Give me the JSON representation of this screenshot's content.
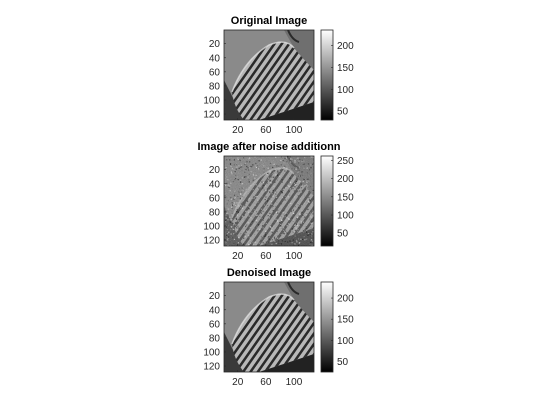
{
  "chart_data": [
    {
      "type": "heatmap",
      "title": "Original Image",
      "colormap": "gray",
      "x_ticks": [
        20,
        60,
        100
      ],
      "y_ticks": [
        20,
        40,
        60,
        80,
        100,
        120
      ],
      "xlim": [
        0.5,
        128.5
      ],
      "ylim": [
        0.5,
        128.5
      ],
      "colorbar": {
        "ticks": [
          50,
          100,
          150,
          200
        ],
        "range": [
          30,
          235
        ]
      }
    },
    {
      "type": "heatmap",
      "title": "Image after noise additionn",
      "colormap": "gray",
      "x_ticks": [
        20,
        60,
        100
      ],
      "y_ticks": [
        20,
        40,
        60,
        80,
        100,
        120
      ],
      "xlim": [
        0.5,
        128.5
      ],
      "ylim": [
        0.5,
        128.5
      ],
      "colorbar": {
        "ticks": [
          50,
          100,
          150,
          200,
          250
        ],
        "range": [
          15,
          262
        ]
      }
    },
    {
      "type": "heatmap",
      "title": "Denoised Image",
      "colormap": "gray",
      "x_ticks": [
        20,
        60,
        100
      ],
      "y_ticks": [
        20,
        40,
        60,
        80,
        100,
        120
      ],
      "xlim": [
        0.5,
        128.5
      ],
      "ylim": [
        0.5,
        128.5
      ],
      "colorbar": {
        "ticks": [
          50,
          100,
          150,
          200
        ],
        "range": [
          25,
          238
        ]
      }
    }
  ],
  "colors": {
    "axis": "#262626",
    "background": "#ffffff"
  }
}
